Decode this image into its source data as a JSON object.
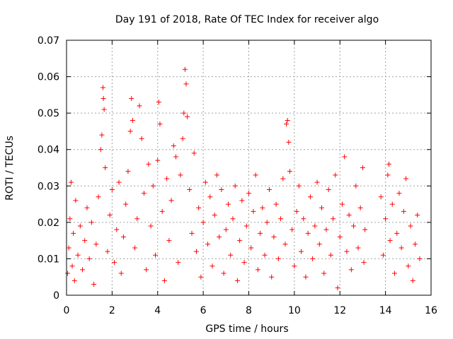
{
  "chart_data": {
    "type": "scatter",
    "title": "Day 191 of 2018, Rate Of TEC Index for receiver algo",
    "xlabel": "GPS time / hours",
    "ylabel": "ROTI / TECUs",
    "xlim": [
      0,
      16
    ],
    "ylim": [
      0,
      0.07
    ],
    "x_ticks": [
      0,
      2,
      4,
      6,
      8,
      10,
      12,
      14,
      16
    ],
    "x_tick_labels": [
      "0",
      "2",
      "4",
      "6",
      "8",
      "10",
      "12",
      "14",
      "16"
    ],
    "y_ticks": [
      0,
      0.01,
      0.02,
      0.03,
      0.04,
      0.05,
      0.06,
      0.07
    ],
    "y_tick_labels": [
      "0",
      "0.01",
      "0.02",
      "0.03",
      "0.04",
      "0.05",
      "0.06",
      "0.07"
    ],
    "grid": true,
    "marker": "+",
    "series_color": "#ff0000",
    "series": [
      {
        "name": "ROTI",
        "points": [
          [
            0.05,
            0.006
          ],
          [
            0.1,
            0.013
          ],
          [
            0.15,
            0.021
          ],
          [
            0.2,
            0.031
          ],
          [
            0.25,
            0.008
          ],
          [
            0.3,
            0.017
          ],
          [
            0.35,
            0.004
          ],
          [
            0.4,
            0.026
          ],
          [
            0.5,
            0.011
          ],
          [
            0.6,
            0.019
          ],
          [
            0.7,
            0.007
          ],
          [
            0.8,
            0.015
          ],
          [
            0.9,
            0.024
          ],
          [
            1.0,
            0.01
          ],
          [
            1.1,
            0.02
          ],
          [
            1.2,
            0.003
          ],
          [
            1.3,
            0.014
          ],
          [
            1.4,
            0.027
          ],
          [
            1.5,
            0.04
          ],
          [
            1.55,
            0.044
          ],
          [
            1.6,
            0.057
          ],
          [
            1.62,
            0.054
          ],
          [
            1.65,
            0.051
          ],
          [
            1.7,
            0.035
          ],
          [
            1.8,
            0.012
          ],
          [
            1.9,
            0.022
          ],
          [
            2.0,
            0.029
          ],
          [
            2.1,
            0.009
          ],
          [
            2.2,
            0.018
          ],
          [
            2.3,
            0.031
          ],
          [
            2.4,
            0.006
          ],
          [
            2.5,
            0.016
          ],
          [
            2.6,
            0.025
          ],
          [
            2.7,
            0.034
          ],
          [
            2.8,
            0.045
          ],
          [
            2.85,
            0.054
          ],
          [
            2.9,
            0.048
          ],
          [
            3.0,
            0.013
          ],
          [
            3.1,
            0.021
          ],
          [
            3.2,
            0.052
          ],
          [
            3.3,
            0.043
          ],
          [
            3.4,
            0.028
          ],
          [
            3.5,
            0.007
          ],
          [
            3.6,
            0.036
          ],
          [
            3.7,
            0.019
          ],
          [
            3.8,
            0.03
          ],
          [
            3.9,
            0.011
          ],
          [
            4.0,
            0.037
          ],
          [
            4.05,
            0.053
          ],
          [
            4.1,
            0.047
          ],
          [
            4.2,
            0.023
          ],
          [
            4.3,
            0.004
          ],
          [
            4.4,
            0.032
          ],
          [
            4.5,
            0.015
          ],
          [
            4.6,
            0.026
          ],
          [
            4.7,
            0.041
          ],
          [
            4.8,
            0.038
          ],
          [
            4.9,
            0.009
          ],
          [
            5.0,
            0.033
          ],
          [
            5.1,
            0.043
          ],
          [
            5.15,
            0.05
          ],
          [
            5.2,
            0.062
          ],
          [
            5.25,
            0.058
          ],
          [
            5.3,
            0.049
          ],
          [
            5.4,
            0.029
          ],
          [
            5.5,
            0.017
          ],
          [
            5.6,
            0.039
          ],
          [
            5.7,
            0.012
          ],
          [
            5.8,
            0.024
          ],
          [
            5.9,
            0.005
          ],
          [
            6.0,
            0.02
          ],
          [
            6.1,
            0.031
          ],
          [
            6.2,
            0.014
          ],
          [
            6.3,
            0.027
          ],
          [
            6.4,
            0.008
          ],
          [
            6.5,
            0.022
          ],
          [
            6.6,
            0.033
          ],
          [
            6.7,
            0.016
          ],
          [
            6.8,
            0.029
          ],
          [
            6.9,
            0.006
          ],
          [
            7.0,
            0.018
          ],
          [
            7.1,
            0.025
          ],
          [
            7.2,
            0.011
          ],
          [
            7.3,
            0.021
          ],
          [
            7.4,
            0.03
          ],
          [
            7.5,
            0.004
          ],
          [
            7.6,
            0.015
          ],
          [
            7.7,
            0.026
          ],
          [
            7.8,
            0.009
          ],
          [
            7.9,
            0.019
          ],
          [
            8.0,
            0.028
          ],
          [
            8.1,
            0.013
          ],
          [
            8.2,
            0.023
          ],
          [
            8.3,
            0.033
          ],
          [
            8.4,
            0.007
          ],
          [
            8.5,
            0.017
          ],
          [
            8.6,
            0.024
          ],
          [
            8.7,
            0.011
          ],
          [
            8.8,
            0.02
          ],
          [
            8.9,
            0.029
          ],
          [
            9.0,
            0.005
          ],
          [
            9.1,
            0.016
          ],
          [
            9.2,
            0.025
          ],
          [
            9.3,
            0.01
          ],
          [
            9.4,
            0.021
          ],
          [
            9.5,
            0.032
          ],
          [
            9.6,
            0.014
          ],
          [
            9.65,
            0.047
          ],
          [
            9.7,
            0.048
          ],
          [
            9.75,
            0.042
          ],
          [
            9.8,
            0.034
          ],
          [
            9.9,
            0.018
          ],
          [
            10.0,
            0.008
          ],
          [
            10.1,
            0.023
          ],
          [
            10.2,
            0.03
          ],
          [
            10.3,
            0.012
          ],
          [
            10.4,
            0.021
          ],
          [
            10.5,
            0.005
          ],
          [
            10.6,
            0.017
          ],
          [
            10.7,
            0.027
          ],
          [
            10.8,
            0.01
          ],
          [
            10.9,
            0.019
          ],
          [
            11.0,
            0.031
          ],
          [
            11.1,
            0.014
          ],
          [
            11.2,
            0.024
          ],
          [
            11.3,
            0.006
          ],
          [
            11.4,
            0.018
          ],
          [
            11.5,
            0.029
          ],
          [
            11.6,
            0.011
          ],
          [
            11.7,
            0.021
          ],
          [
            11.8,
            0.033
          ],
          [
            11.9,
            0.002
          ],
          [
            12.0,
            0.016
          ],
          [
            12.1,
            0.025
          ],
          [
            12.2,
            0.038
          ],
          [
            12.3,
            0.012
          ],
          [
            12.4,
            0.022
          ],
          [
            12.5,
            0.007
          ],
          [
            12.6,
            0.019
          ],
          [
            12.7,
            0.03
          ],
          [
            12.8,
            0.013
          ],
          [
            12.9,
            0.024
          ],
          [
            13.0,
            0.035
          ],
          [
            13.05,
            0.009
          ],
          [
            13.1,
            0.018
          ],
          [
            13.8,
            0.027
          ],
          [
            13.9,
            0.011
          ],
          [
            14.0,
            0.021
          ],
          [
            14.1,
            0.033
          ],
          [
            14.15,
            0.036
          ],
          [
            14.2,
            0.015
          ],
          [
            14.3,
            0.025
          ],
          [
            14.4,
            0.006
          ],
          [
            14.5,
            0.017
          ],
          [
            14.6,
            0.028
          ],
          [
            14.7,
            0.013
          ],
          [
            14.8,
            0.023
          ],
          [
            14.9,
            0.032
          ],
          [
            15.0,
            0.008
          ],
          [
            15.1,
            0.019
          ],
          [
            15.2,
            0.004
          ],
          [
            15.3,
            0.014
          ],
          [
            15.4,
            0.022
          ],
          [
            15.5,
            0.01
          ]
        ]
      }
    ]
  }
}
